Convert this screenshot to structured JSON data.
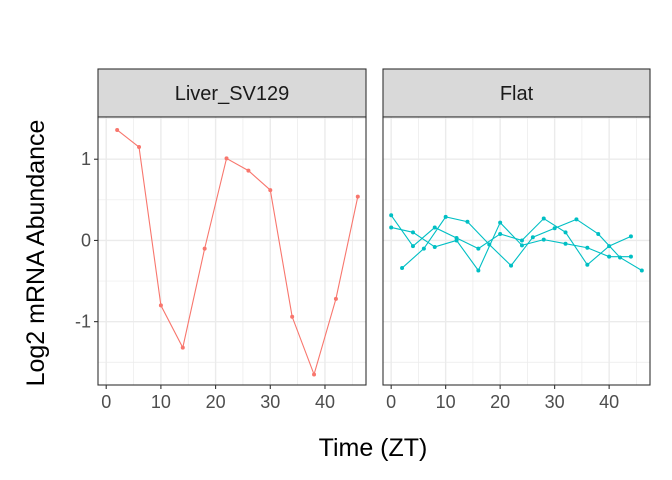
{
  "chart_data": {
    "type": "line",
    "xlabel": "Time (ZT)",
    "ylabel": "Log2 mRNA Abundance",
    "xlim": [
      -1.5,
      47.5
    ],
    "ylim": [
      -1.78,
      1.52
    ],
    "x_ticks": [
      0,
      10,
      20,
      30,
      40
    ],
    "y_ticks": [
      -1,
      0,
      1
    ],
    "y_tick_labels": [
      "-1",
      "0",
      "1"
    ],
    "grid": true,
    "panels": [
      {
        "strip": "Liver_SV129",
        "series": [
          {
            "color": "#F8766D",
            "x": [
              2,
              6,
              10,
              14,
              18,
              22,
              26,
              30,
              34,
              38,
              42,
              46
            ],
            "y": [
              1.36,
              1.15,
              -0.8,
              -1.32,
              -0.1,
              1.01,
              0.86,
              0.62,
              -0.94,
              -1.65,
              -0.72,
              0.54
            ]
          }
        ]
      },
      {
        "strip": "Flat",
        "series": [
          {
            "color": "#00BFC4",
            "x": [
              0,
              4,
              8,
              12,
              16,
              20,
              24,
              28,
              32,
              36,
              40,
              44
            ],
            "y": [
              0.31,
              -0.07,
              0.16,
              0.03,
              -0.1,
              0.08,
              0.0,
              0.27,
              0.1,
              -0.3,
              -0.07,
              0.05
            ]
          },
          {
            "color": "#00BFC4",
            "x": [
              2,
              6,
              10,
              14,
              18,
              22,
              26,
              30,
              34,
              38,
              42,
              46
            ],
            "y": [
              -0.34,
              -0.1,
              0.29,
              0.23,
              -0.05,
              -0.31,
              0.04,
              0.15,
              0.26,
              0.08,
              -0.21,
              -0.37
            ]
          },
          {
            "color": "#00BFC4",
            "x": [
              0,
              4,
              8,
              12,
              16,
              20,
              24,
              28,
              32,
              36,
              40,
              44
            ],
            "y": [
              0.16,
              0.1,
              -0.08,
              0.0,
              -0.37,
              0.22,
              -0.06,
              0.01,
              -0.04,
              -0.09,
              -0.2,
              -0.2
            ]
          }
        ]
      }
    ]
  }
}
